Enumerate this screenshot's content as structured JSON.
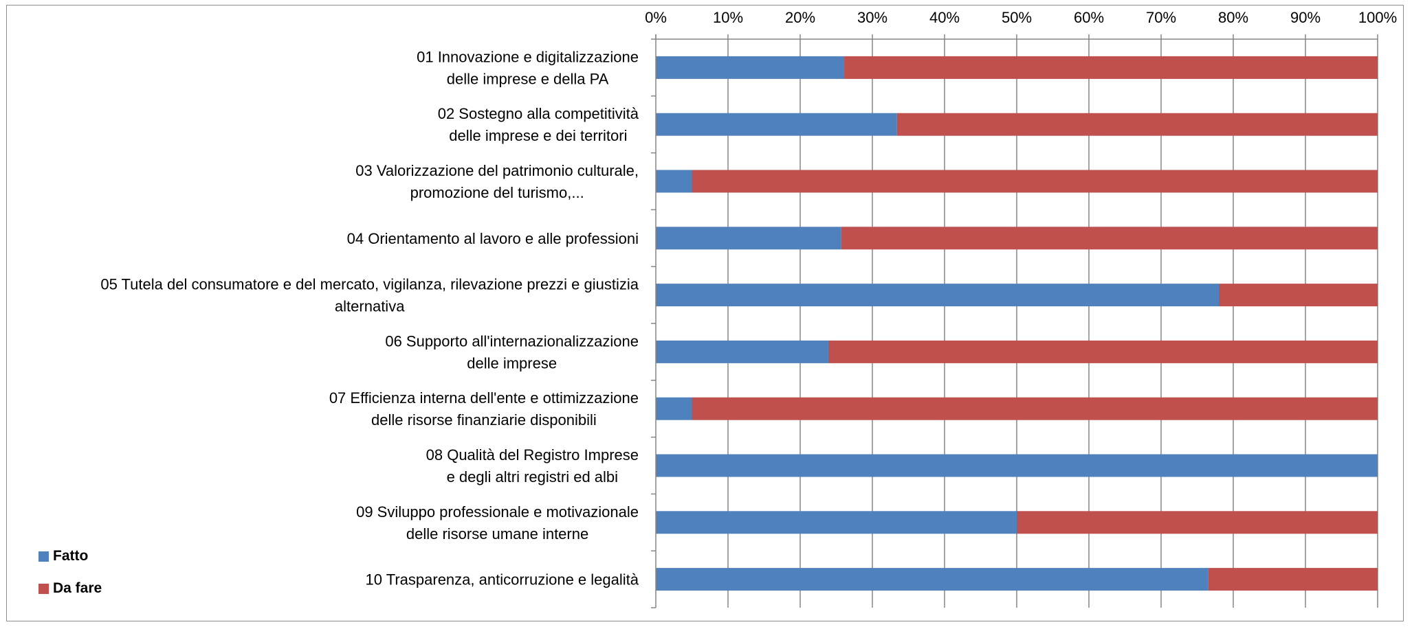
{
  "chart_data": {
    "type": "bar",
    "orientation": "horizontal",
    "stacked": "percent",
    "title": "",
    "xlabel": "",
    "ylabel": "",
    "xlim": [
      0,
      100
    ],
    "x_ticks": [
      "0%",
      "10%",
      "20%",
      "30%",
      "40%",
      "50%",
      "60%",
      "70%",
      "80%",
      "90%",
      "100%"
    ],
    "x_axis_position": "top",
    "grid": true,
    "legend_position": "bottom-left",
    "categories": [
      [
        "01 Innovazione e digitalizzazione",
        "delle imprese e della PA"
      ],
      [
        "02 Sostegno alla competitività",
        "delle imprese e dei territori"
      ],
      [
        "03 Valorizzazione del patrimonio culturale,",
        "promozione del turismo,..."
      ],
      [
        "04 Orientamento al lavoro e alle professioni"
      ],
      [
        "05 Tutela del consumatore e del mercato, vigilanza, rilevazione prezzi e giustizia",
        "alternativa"
      ],
      [
        "06 Supporto all'internazionalizzazione",
        "delle imprese"
      ],
      [
        "07 Efficienza interna dell'ente e ottimizzazione",
        "delle risorse finanziarie disponibili"
      ],
      [
        "08 Qualità del Registro Imprese",
        "e degli altri registri ed albi"
      ],
      [
        "09 Sviluppo professionale e motivazionale",
        "delle risorse umane interne"
      ],
      [
        "10 Trasparenza, anticorruzione e legalità"
      ]
    ],
    "series": [
      {
        "name": "Fatto",
        "color": "#4f81bd",
        "values": [
          26.1,
          33.4,
          5.0,
          25.7,
          78.0,
          23.9,
          5.0,
          100.0,
          50.0,
          76.5
        ]
      },
      {
        "name": "Da fare",
        "color": "#c0504d",
        "values": [
          73.9,
          66.6,
          95.0,
          74.3,
          22.0,
          76.1,
          95.0,
          0.0,
          50.0,
          23.5
        ]
      }
    ]
  }
}
